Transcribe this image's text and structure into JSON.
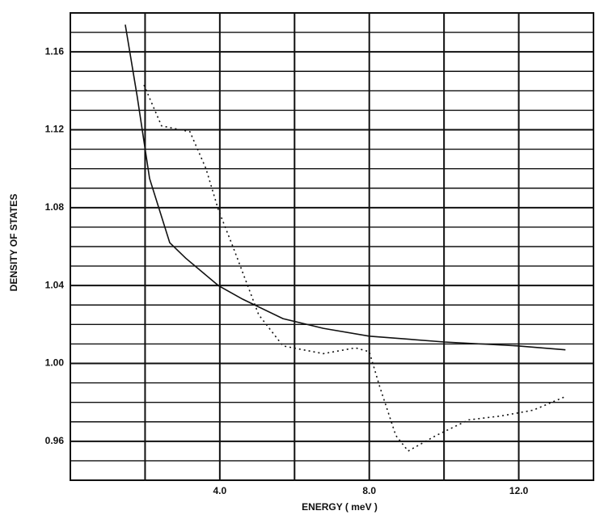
{
  "chart_data": {
    "type": "line",
    "x_label": "ENERGY ( meV )",
    "y_label": "DENSITY OF STATES",
    "xlim": [
      0,
      14
    ],
    "ylim": [
      0.94,
      1.18
    ],
    "xticks": [
      {
        "value": 4,
        "label": "4.0"
      },
      {
        "value": 8,
        "label": "8.0"
      },
      {
        "value": 12,
        "label": "12.0"
      }
    ],
    "minor_xticks": [
      2,
      6,
      10
    ],
    "yticks": [
      {
        "value": 0.96,
        "label": "0.96"
      },
      {
        "value": 1,
        "label": "1.00"
      },
      {
        "value": 1.04,
        "label": "1.04"
      },
      {
        "value": 1.08,
        "label": "1.08"
      },
      {
        "value": 1.12,
        "label": "1.12"
      },
      {
        "value": 1.16,
        "label": "1.16"
      }
    ],
    "minor_yticks": [
      0.95,
      0.97,
      0.98,
      0.99,
      1.01,
      1.02,
      1.03,
      1.05,
      1.06,
      1.07,
      1.09,
      1.1,
      1.11,
      1.13,
      1.14,
      1.15,
      1.17
    ],
    "grid": true,
    "series": [
      {
        "color": "#111111",
        "style": "solid",
        "x": [
          1.47,
          1.79,
          2.12,
          2.66,
          3.09,
          3.96,
          4.61,
          5.69,
          6.77,
          8.0,
          10.01,
          11.96,
          13.25
        ],
        "values": [
          1.174,
          1.137,
          1.095,
          1.062,
          1.054,
          1.04,
          1.033,
          1.023,
          1.018,
          1.014,
          1.011,
          1.009,
          1.007
        ]
      },
      {
        "color": "#111111",
        "style": "dotted",
        "x": [
          1.97,
          2.44,
          3.2,
          3.63,
          3.96,
          4.39,
          5.04,
          5.69,
          6.77,
          7.63,
          8.0,
          8.28,
          8.71,
          9.04,
          9.79,
          10.66,
          11.52,
          12.39,
          13.25
        ],
        "values": [
          1.143,
          1.122,
          1.119,
          1.1,
          1.079,
          1.058,
          1.025,
          1.009,
          1.005,
          1.008,
          1.006,
          0.988,
          0.963,
          0.955,
          0.963,
          0.971,
          0.973,
          0.976,
          0.983
        ]
      }
    ]
  }
}
